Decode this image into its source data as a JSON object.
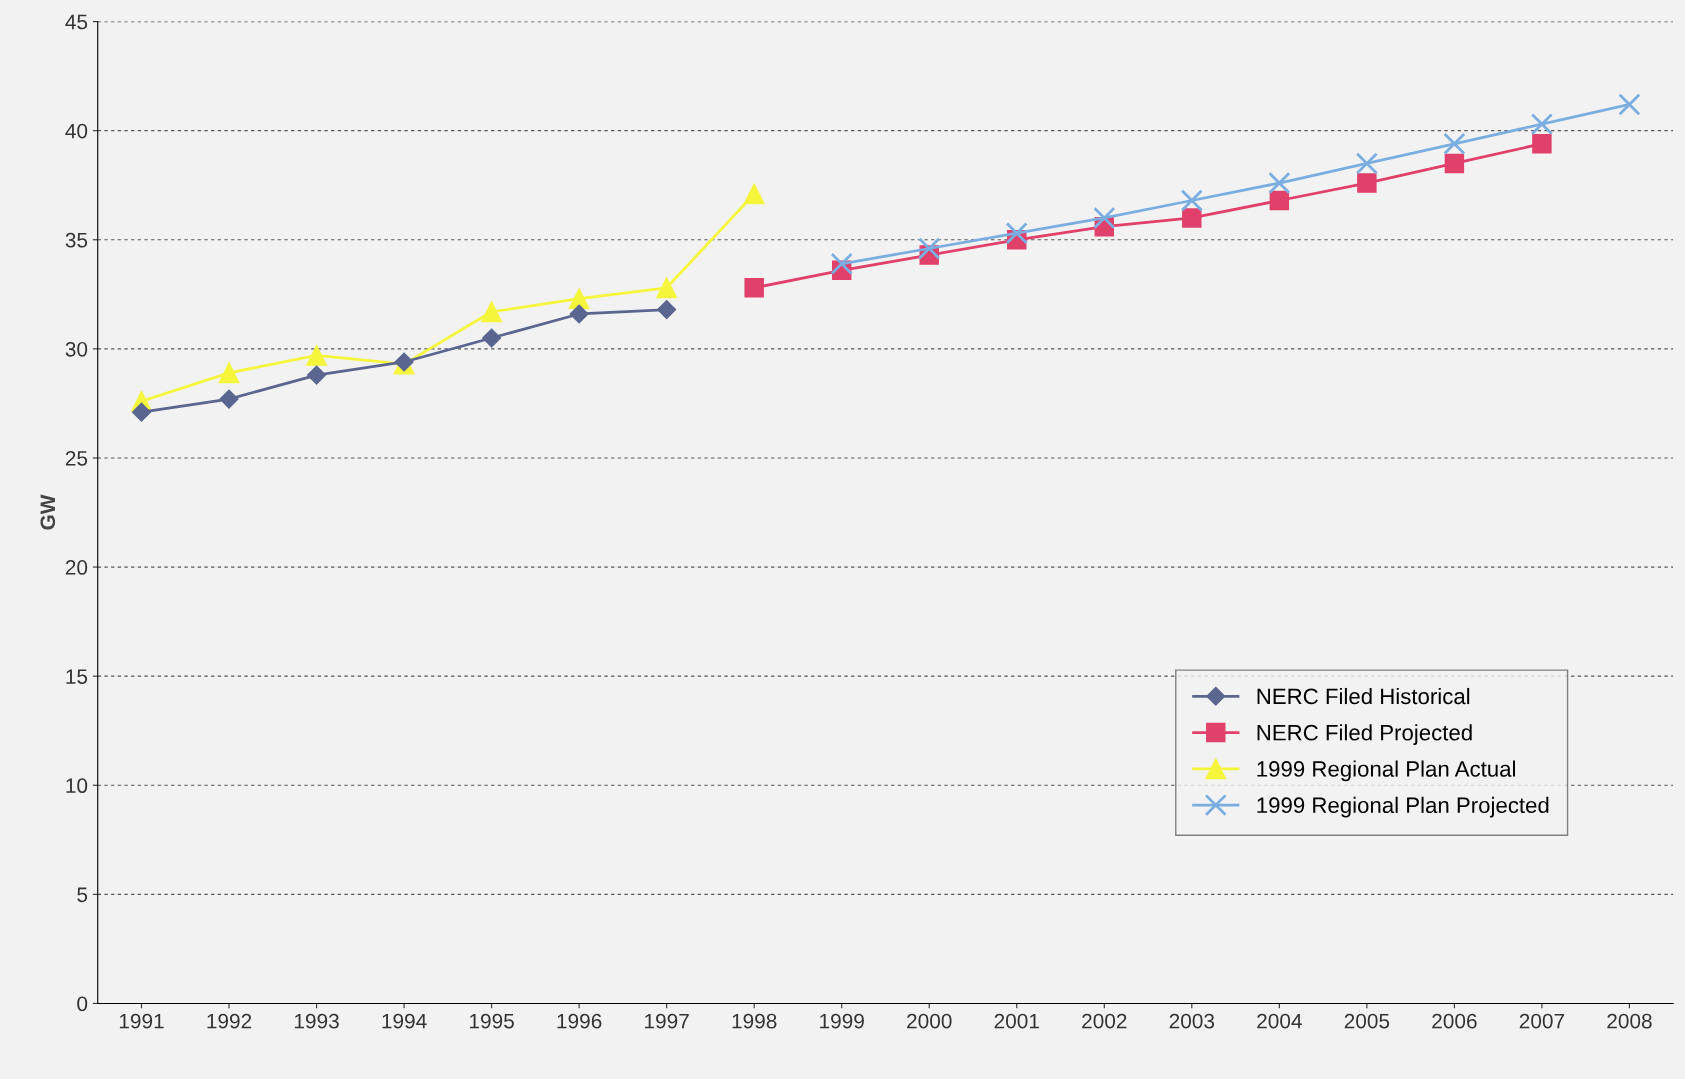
{
  "chart_data": {
    "type": "line",
    "ylabel": "GW",
    "categories": [
      "1991",
      "1992",
      "1993",
      "1994",
      "1995",
      "1996",
      "1997",
      "1998",
      "1999",
      "2000",
      "2001",
      "2002",
      "2003",
      "2004",
      "2005",
      "2006",
      "2007",
      "2008"
    ],
    "series": [
      {
        "name": "NERC Filed Historical",
        "color": "#5a6690",
        "marker": "diamond",
        "values": [
          27.1,
          27.7,
          28.8,
          29.4,
          30.5,
          31.6,
          31.8,
          null,
          null,
          null,
          null,
          null,
          null,
          null,
          null,
          null,
          null,
          null
        ]
      },
      {
        "name": "NERC Filed Projected",
        "color": "#e0406a",
        "marker": "square",
        "values": [
          null,
          null,
          null,
          null,
          null,
          null,
          null,
          32.8,
          33.6,
          34.3,
          35.0,
          35.6,
          36.0,
          36.8,
          37.6,
          38.5,
          39.4,
          null
        ]
      },
      {
        "name": "1999 Regional Plan Actual",
        "color": "#f5f53c",
        "marker": "triangle",
        "values": [
          27.6,
          28.9,
          29.7,
          29.3,
          31.7,
          32.3,
          32.8,
          37.1,
          null,
          null,
          null,
          null,
          null,
          null,
          null,
          null,
          null,
          null
        ]
      },
      {
        "name": "1999 Regional Plan Projected",
        "color": "#7aaee0",
        "marker": "cross",
        "values": [
          null,
          null,
          null,
          null,
          null,
          null,
          null,
          null,
          33.9,
          34.6,
          35.3,
          36.0,
          36.8,
          37.6,
          38.5,
          39.4,
          40.3,
          41.2
        ]
      }
    ],
    "ylim": [
      0,
      45
    ],
    "yticks": [
      0,
      5,
      10,
      15,
      20,
      25,
      30,
      35,
      40,
      45
    ],
    "grid": "y",
    "legend": "lower right",
    "line_style": "solid"
  }
}
